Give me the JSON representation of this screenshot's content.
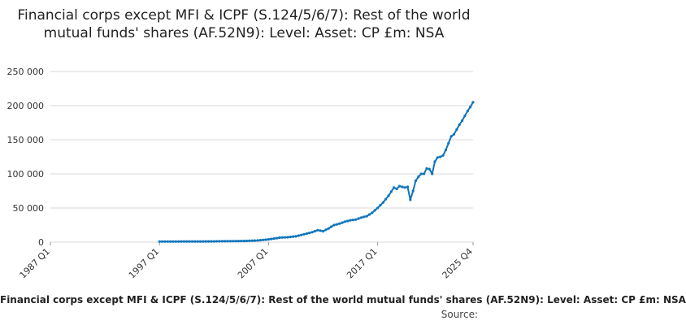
{
  "chart_data": {
    "type": "line",
    "title": "Financial corps except MFI & ICPF (S.124/5/6/7): Rest of the world mutual funds' shares (AF.52N9): Level: Asset: CP £m: NSA",
    "xlabel": "",
    "ylabel": "",
    "ylim": [
      0,
      250000
    ],
    "yticks": [
      0,
      50000,
      100000,
      150000,
      200000,
      250000
    ],
    "ytick_labels": [
      "0",
      "50 000",
      "100 000",
      "150 000",
      "200 000",
      "250 000"
    ],
    "xlim": [
      1987.0,
      2025.75
    ],
    "xticks": [
      1987.0,
      1997.0,
      2007.0,
      2017.0,
      2025.75
    ],
    "xtick_labels": [
      "1987 Q1",
      "1997 Q1",
      "2007 Q1",
      "2017 Q1",
      "2025 Q4"
    ],
    "grid": true,
    "legend": "none",
    "series": [
      {
        "name": "Financial corps except MFI & ICPF (S.124/5/6/7): Rest of the world mutual funds' shares (AF.52N9): Level: Asset: CP £m: NSA",
        "x": [
          1997.0,
          1998.0,
          1999.0,
          2000.0,
          2001.0,
          2002.0,
          2003.0,
          2004.0,
          2005.0,
          2006.0,
          2007.0,
          2008.0,
          2008.75,
          2009.5,
          2010.5,
          2011.0,
          2011.5,
          2012.0,
          2012.5,
          2013.0,
          2013.5,
          2014.0,
          2014.5,
          2015.0,
          2015.5,
          2016.0,
          2016.5,
          2017.0,
          2017.5,
          2018.0,
          2018.5,
          2018.75,
          2019.0,
          2019.5,
          2019.75,
          2020.0,
          2020.25,
          2020.5,
          2020.75,
          2021.0,
          2021.25,
          2021.5,
          2021.75,
          2022.0,
          2022.25,
          2022.5,
          2022.75,
          2023.0,
          2023.25,
          2023.5,
          2023.75,
          2024.0,
          2024.25,
          2024.5,
          2024.75,
          2025.0,
          2025.25,
          2025.5,
          2025.75
        ],
        "y": [
          800,
          800,
          900,
          900,
          1000,
          1100,
          1300,
          1500,
          1800,
          2400,
          4000,
          6500,
          7200,
          8500,
          12500,
          14500,
          17500,
          16000,
          20000,
          25000,
          27000,
          30000,
          32000,
          33000,
          36000,
          38000,
          43000,
          50000,
          58000,
          68000,
          80000,
          78000,
          82000,
          80000,
          81000,
          62000,
          75000,
          90000,
          96000,
          100000,
          100000,
          108000,
          107000,
          100000,
          118000,
          124000,
          125000,
          127000,
          135000,
          145000,
          155000,
          158000,
          165000,
          172000,
          178000,
          185000,
          192000,
          198000,
          205000
        ]
      }
    ],
    "caption": "Financial corps except MFI & ICPF (S.124/5/6/7): Rest of the world mutual funds' shares (AF.52N9): Level: Asset: CP £m: NSA",
    "source_label": "Source:",
    "colors": {
      "line": "#0f75bb",
      "grid": "#d9d9d9",
      "axis_text": "#333333"
    }
  }
}
